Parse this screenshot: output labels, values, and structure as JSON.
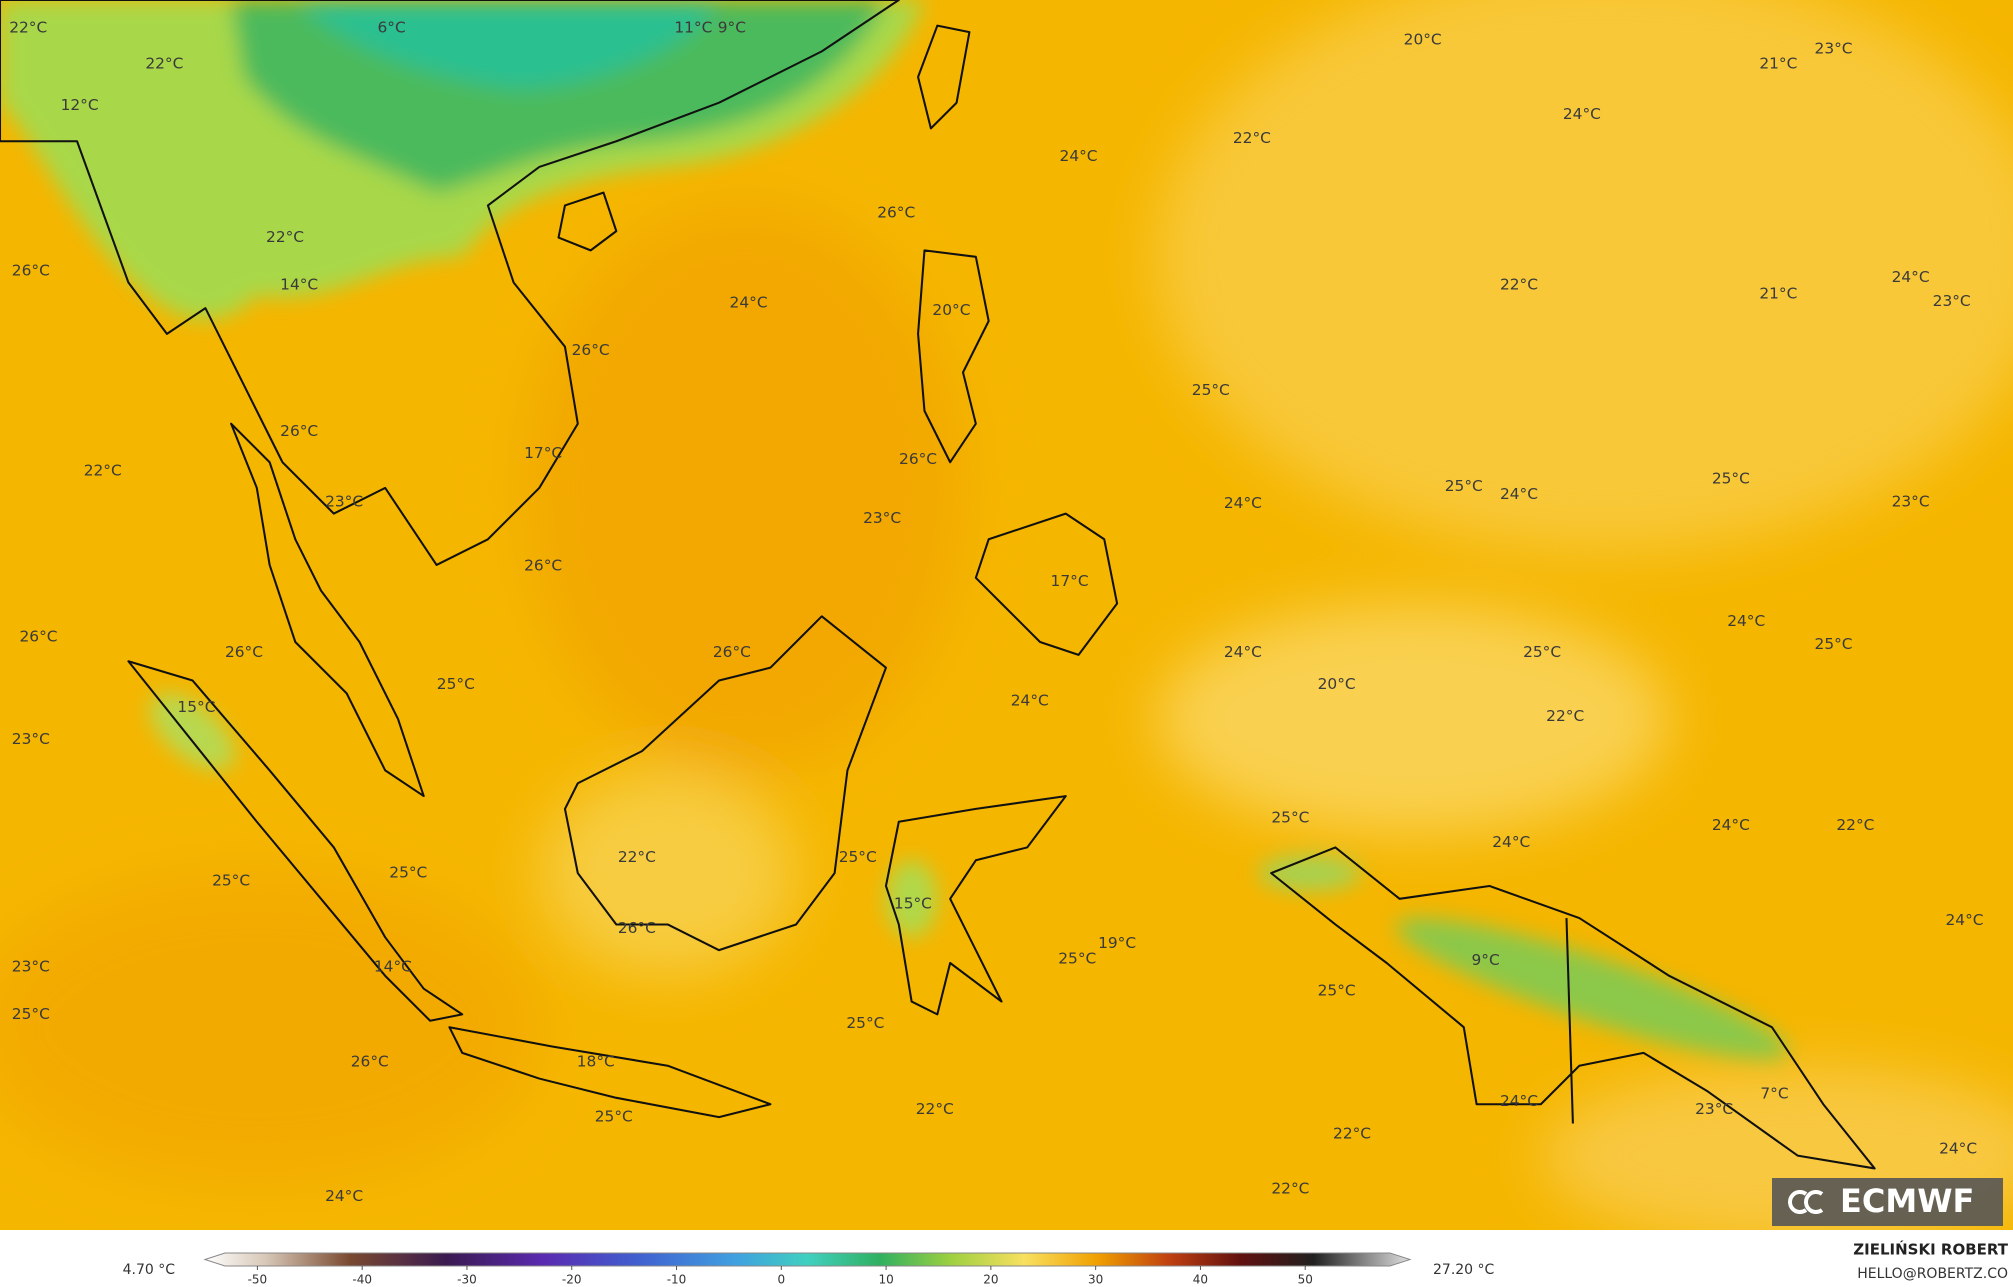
{
  "map": {
    "temperature_labels": [
      "22°C",
      "6°C",
      "11°C",
      "9°C",
      "22°C",
      "12°C",
      "20°C",
      "21°C",
      "23°C",
      "24°C",
      "22°C",
      "24°C",
      "26°C",
      "22°C",
      "26°C",
      "14°C",
      "22°C",
      "24°C",
      "21°C",
      "23°C",
      "24°C",
      "20°C",
      "26°C",
      "25°C",
      "26°C",
      "17°C",
      "26°C",
      "22°C",
      "25°C",
      "24°C",
      "25°C",
      "24°C",
      "23°C",
      "23°C",
      "23°C",
      "26°C",
      "17°C",
      "24°C",
      "26°C",
      "26°C",
      "26°C",
      "24°C",
      "25°C",
      "25°C",
      "25°C",
      "20°C",
      "24°C",
      "15°C",
      "22°C",
      "23°C",
      "25°C",
      "24°C",
      "22°C",
      "24°C",
      "22°C",
      "25°C",
      "25°C",
      "25°C",
      "15°C",
      "24°C",
      "26°C",
      "19°C",
      "25°C",
      "9°C",
      "14°C",
      "23°C",
      "25°C",
      "25°C",
      "25°C",
      "26°C",
      "18°C",
      "24°C",
      "23°C",
      "7°C",
      "22°C",
      "25°C",
      "22°C",
      "24°C",
      "22°C",
      "24°C"
    ]
  },
  "colorbar": {
    "min_label": "4.70 °C",
    "max_label": "27.20 °C",
    "range": [
      -55,
      60
    ],
    "ticks": [
      -50,
      -40,
      -30,
      -20,
      -10,
      0,
      10,
      20,
      30,
      40,
      50
    ]
  },
  "credit": {
    "author": "ZIELIŃSKI ROBERT",
    "email": "HELLO@ROBERTZ.CO"
  },
  "logo": "ECMWF"
}
